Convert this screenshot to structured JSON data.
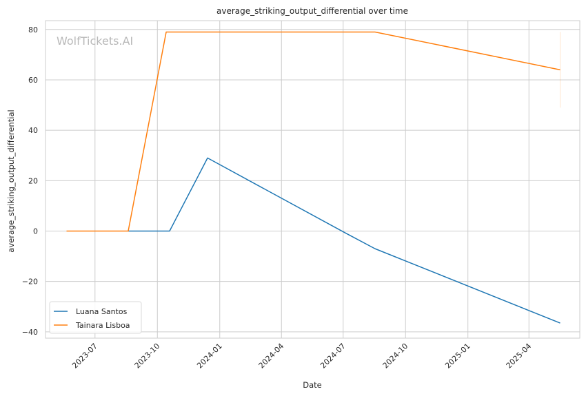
{
  "chart_data": {
    "type": "line",
    "title": "average_striking_output_differential over time",
    "xlabel": "Date",
    "ylabel": "average_striking_output_differential",
    "watermark": "WolfTickets.AI",
    "x_type": "date",
    "xlim": [
      "2023-04-19",
      "2025-06-15"
    ],
    "ylim": [
      -42.5,
      83.5
    ],
    "x_ticks": [
      "2023-07-01",
      "2023-10-01",
      "2024-01-01",
      "2024-04-01",
      "2024-07-01",
      "2024-10-01",
      "2025-01-01",
      "2025-04-01"
    ],
    "x_tick_labels": [
      "2023-07",
      "2023-10",
      "2024-01",
      "2024-04",
      "2024-07",
      "2024-10",
      "2025-01",
      "2025-04"
    ],
    "y_ticks": [
      -40,
      -20,
      0,
      20,
      40,
      60,
      80
    ],
    "y_tick_labels": [
      "−40",
      "−20",
      "0",
      "20",
      "40",
      "60",
      "80"
    ],
    "grid": true,
    "legend_position": "lower-left",
    "series": [
      {
        "name": "Luana Santos",
        "color": "#1f77b4",
        "points": [
          {
            "x": "2023-08-19",
            "y": 0
          },
          {
            "x": "2023-10-19",
            "y": 0
          },
          {
            "x": "2023-12-14",
            "y": 29
          },
          {
            "x": "2024-07-06",
            "y": -1
          },
          {
            "x": "2024-08-17",
            "y": -7
          },
          {
            "x": "2025-05-17",
            "y": -36.5
          }
        ]
      },
      {
        "name": "Tainara Lisboa",
        "color": "#ff7f0e",
        "points": [
          {
            "x": "2023-05-20",
            "y": 0
          },
          {
            "x": "2023-08-19",
            "y": 0
          },
          {
            "x": "2023-10-14",
            "y": 79
          },
          {
            "x": "2024-08-17",
            "y": 79
          },
          {
            "x": "2025-05-17",
            "y": 64
          }
        ],
        "band": {
          "x": "2025-05-17",
          "low": 49,
          "high": 79
        }
      }
    ]
  }
}
